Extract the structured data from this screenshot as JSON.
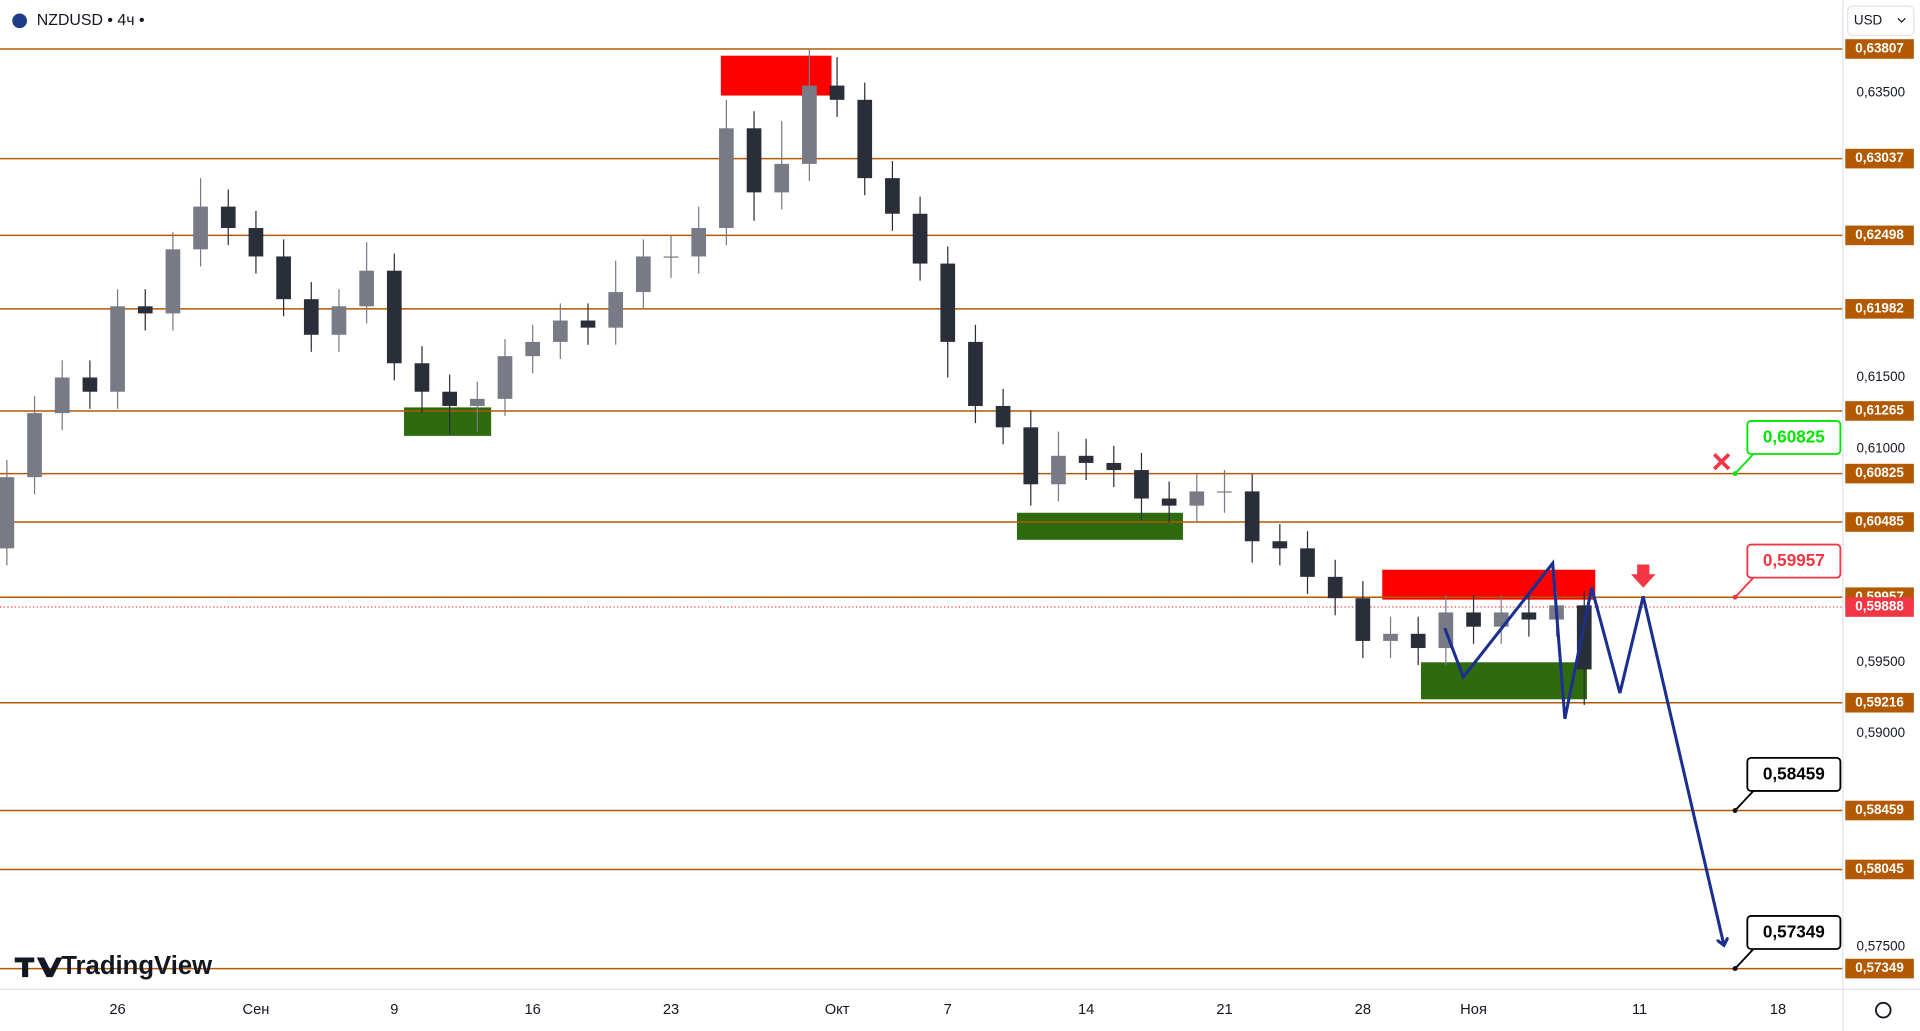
{
  "chart_data": {
    "type": "candlestick",
    "title": "NZDUSD • 4ч •",
    "currency": "USD",
    "brand": "TradingView",
    "xlim": [
      -4.248,
      62.345
    ],
    "ylim": [
      0.57203,
      0.64151
    ],
    "xticks": [
      {
        "value": 0,
        "label": "26"
      },
      {
        "value": 5,
        "label": "Сен"
      },
      {
        "value": 10,
        "label": "9"
      },
      {
        "value": 15,
        "label": "16"
      },
      {
        "value": 20,
        "label": "23"
      },
      {
        "value": 26,
        "label": "Окт"
      },
      {
        "value": 30,
        "label": "7"
      },
      {
        "value": 35,
        "label": "14"
      },
      {
        "value": 40,
        "label": "21"
      },
      {
        "value": 45,
        "label": "28"
      },
      {
        "value": 49,
        "label": "Ноя"
      },
      {
        "value": 55,
        "label": "11"
      },
      {
        "value": 60,
        "label": "18"
      }
    ],
    "yticks": [
      {
        "value": 0.635,
        "label": "0,63500"
      },
      {
        "value": 0.615,
        "label": "0,61500"
      },
      {
        "value": 0.61,
        "label": "0,61000"
      },
      {
        "value": 0.595,
        "label": "0,59500"
      },
      {
        "value": 0.59,
        "label": "0,59000"
      },
      {
        "value": 0.575,
        "label": "0,57500"
      }
    ],
    "x": [
      -4,
      -3,
      -2,
      -1,
      0,
      1,
      2,
      3,
      4,
      5,
      6,
      7,
      8,
      9,
      10,
      11,
      12,
      13,
      14,
      15,
      16,
      17,
      18,
      19,
      20,
      21,
      22,
      23,
      24,
      25,
      26,
      27,
      28,
      29,
      30,
      31,
      32,
      33,
      34,
      35,
      36,
      37,
      38,
      39,
      40,
      41,
      42,
      43,
      44,
      45,
      46,
      47,
      48,
      49,
      50,
      51,
      52,
      53
    ],
    "open": [
      0.603,
      0.608,
      0.6125,
      0.615,
      0.614,
      0.62,
      0.6195,
      0.624,
      0.627,
      0.6255,
      0.6235,
      0.6205,
      0.618,
      0.62,
      0.6225,
      0.616,
      0.614,
      0.613,
      0.6135,
      0.6165,
      0.6175,
      0.619,
      0.6185,
      0.621,
      0.6235,
      0.6235,
      0.6255,
      0.6325,
      0.628,
      0.63,
      0.6355,
      0.6345,
      0.629,
      0.6265,
      0.623,
      0.6175,
      0.613,
      0.6115,
      0.6075,
      0.6095,
      0.609,
      0.6085,
      0.6065,
      0.606,
      0.607,
      0.607,
      0.6035,
      0.603,
      0.601,
      0.5995,
      0.5965,
      0.597,
      0.596,
      0.5985,
      0.5975,
      0.5985,
      0.598,
      0.599
    ],
    "high": [
      0.6092,
      0.6137,
      0.6162,
      0.6162,
      0.6212,
      0.6212,
      0.6252,
      0.629,
      0.6282,
      0.6267,
      0.6247,
      0.6217,
      0.6212,
      0.6245,
      0.6237,
      0.6172,
      0.6152,
      0.6147,
      0.6177,
      0.6187,
      0.6202,
      0.6202,
      0.6232,
      0.6247,
      0.625,
      0.627,
      0.6345,
      0.6337,
      0.633,
      0.638,
      0.6375,
      0.6357,
      0.6302,
      0.6277,
      0.6242,
      0.6187,
      0.6142,
      0.6127,
      0.6112,
      0.6107,
      0.6102,
      0.6097,
      0.6077,
      0.6082,
      0.6085,
      0.6082,
      0.6047,
      0.6042,
      0.6022,
      0.6007,
      0.5982,
      0.5982,
      0.5997,
      0.5997,
      0.5997,
      0.5997,
      0.6,
      0.6
    ],
    "low": [
      0.6018,
      0.6068,
      0.6113,
      0.6128,
      0.6128,
      0.6183,
      0.6183,
      0.6228,
      0.6243,
      0.6223,
      0.6193,
      0.6168,
      0.6168,
      0.6188,
      0.6148,
      0.6125,
      0.611,
      0.6112,
      0.6123,
      0.6153,
      0.6163,
      0.6173,
      0.6173,
      0.6198,
      0.622,
      0.6223,
      0.6243,
      0.626,
      0.6268,
      0.6288,
      0.6333,
      0.6278,
      0.6253,
      0.6218,
      0.615,
      0.6118,
      0.6103,
      0.606,
      0.6063,
      0.6078,
      0.6073,
      0.605,
      0.6048,
      0.6048,
      0.6055,
      0.602,
      0.6018,
      0.5998,
      0.5983,
      0.5953,
      0.5953,
      0.5948,
      0.5948,
      0.5963,
      0.5963,
      0.5968,
      0.5968,
      0.592
    ],
    "close": [
      0.608,
      0.6125,
      0.615,
      0.614,
      0.62,
      0.6195,
      0.624,
      0.627,
      0.6255,
      0.6235,
      0.6205,
      0.618,
      0.62,
      0.6225,
      0.616,
      0.614,
      0.613,
      0.6135,
      0.6165,
      0.6175,
      0.619,
      0.6185,
      0.621,
      0.6235,
      0.6235,
      0.6255,
      0.6325,
      0.628,
      0.63,
      0.6355,
      0.6345,
      0.629,
      0.6265,
      0.623,
      0.6175,
      0.613,
      0.6115,
      0.6075,
      0.6095,
      0.609,
      0.6085,
      0.6065,
      0.606,
      0.607,
      0.607,
      0.6035,
      0.603,
      0.601,
      0.5995,
      0.5965,
      0.597,
      0.596,
      0.5985,
      0.5975,
      0.5985,
      0.598,
      0.599,
      0.5945
    ],
    "up_color": "#787b86",
    "down_color": "#2a2e39",
    "levels": [
      {
        "value": 0.63807,
        "label": "0,63807"
      },
      {
        "value": 0.63037,
        "label": "0,63037"
      },
      {
        "value": 0.62498,
        "label": "0,62498"
      },
      {
        "value": 0.61982,
        "label": "0,61982"
      },
      {
        "value": 0.61265,
        "label": "0,61265"
      },
      {
        "value": 0.60825,
        "label": "0,60825"
      },
      {
        "value": 0.60485,
        "label": "0,60485"
      },
      {
        "value": 0.59957,
        "label": "0,59957"
      },
      {
        "value": 0.59216,
        "label": "0,59216"
      },
      {
        "value": 0.58459,
        "label": "0,58459"
      },
      {
        "value": 0.58045,
        "label": "0,58045"
      },
      {
        "value": 0.57349,
        "label": "0,57349"
      }
    ],
    "level_color": "#b35900",
    "current_price": {
      "value": 0.59888,
      "label": "0,59888",
      "color": "#f23645"
    },
    "zones": [
      {
        "x": [
          21.8,
          25.8
        ],
        "y": [
          0.6348,
          0.6376
        ],
        "color": "#ff0000"
      },
      {
        "x": [
          45.7,
          53.4
        ],
        "y": [
          0.5994,
          0.6015
        ],
        "color": "#ff0000"
      },
      {
        "x": [
          10.35,
          13.5
        ],
        "y": [
          0.6109,
          0.6129
        ],
        "color": "#2e6b0f"
      },
      {
        "x": [
          32.5,
          38.5
        ],
        "y": [
          0.6036,
          0.6055
        ],
        "color": "#2e6b0f"
      },
      {
        "x": [
          47.1,
          53.1
        ],
        "y": [
          0.5924,
          0.595
        ],
        "color": "#2e6b0f"
      }
    ],
    "projection": {
      "color": "#1a2f8f",
      "x": [
        47.96,
        48.63,
        51.86,
        52.3,
        53.27,
        54.29,
        55.13,
        58.05
      ],
      "y": [
        0.5974,
        0.59396,
        0.60195,
        0.59103,
        0.60023,
        0.59284,
        0.59963,
        0.57512
      ]
    },
    "callouts": [
      {
        "value": 0.60825,
        "label": "0,60825",
        "color": "#00e600"
      },
      {
        "value": 0.59957,
        "label": "0,59957",
        "color": "#f23645"
      },
      {
        "value": 0.58459,
        "label": "0,58459",
        "color": "#000000"
      },
      {
        "value": 0.57349,
        "label": "0,57349",
        "color": "#000000"
      }
    ]
  }
}
